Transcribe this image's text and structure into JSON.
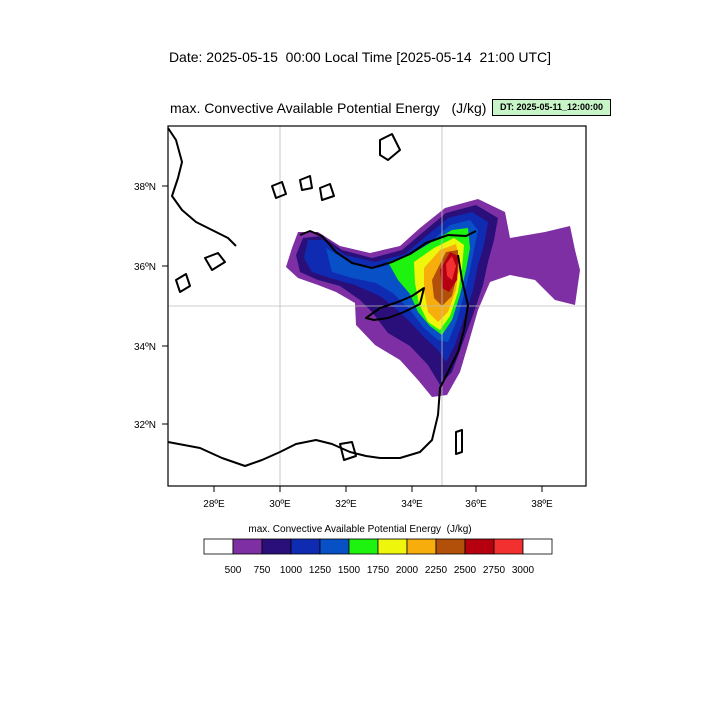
{
  "header": {
    "date_line": "Date: 2025-05-15  00:00 Local Time [2025-05-14  21:00 UTC]",
    "map_title": "max. Convective Available Potential Energy   (J/kg)",
    "dt_badge": "DT: 2025-05-11_12:00:00"
  },
  "map": {
    "lon_ticks": [
      "28ºE",
      "30ºE",
      "32ºE",
      "34ºE",
      "36ºE",
      "38ºE"
    ],
    "lat_ticks": [
      "38ºN",
      "36ºN",
      "34ºN",
      "32ºN"
    ],
    "gridlines": true,
    "land_outline_color": "#000000"
  },
  "colorbar": {
    "label": "max. Convective Available Potential Energy  (J/kg)",
    "colors": [
      "#ffffff",
      "#7d2fa3",
      "#2a0f7a",
      "#0e2bb2",
      "#0850c6",
      "#1ef20f",
      "#eef70b",
      "#f7ae0c",
      "#b2500a",
      "#b6000f",
      "#f23030",
      "#ffffff"
    ],
    "ticks": [
      "500",
      "750",
      "1000",
      "1250",
      "1500",
      "1750",
      "2000",
      "2250",
      "2500",
      "2750",
      "3000"
    ]
  }
}
